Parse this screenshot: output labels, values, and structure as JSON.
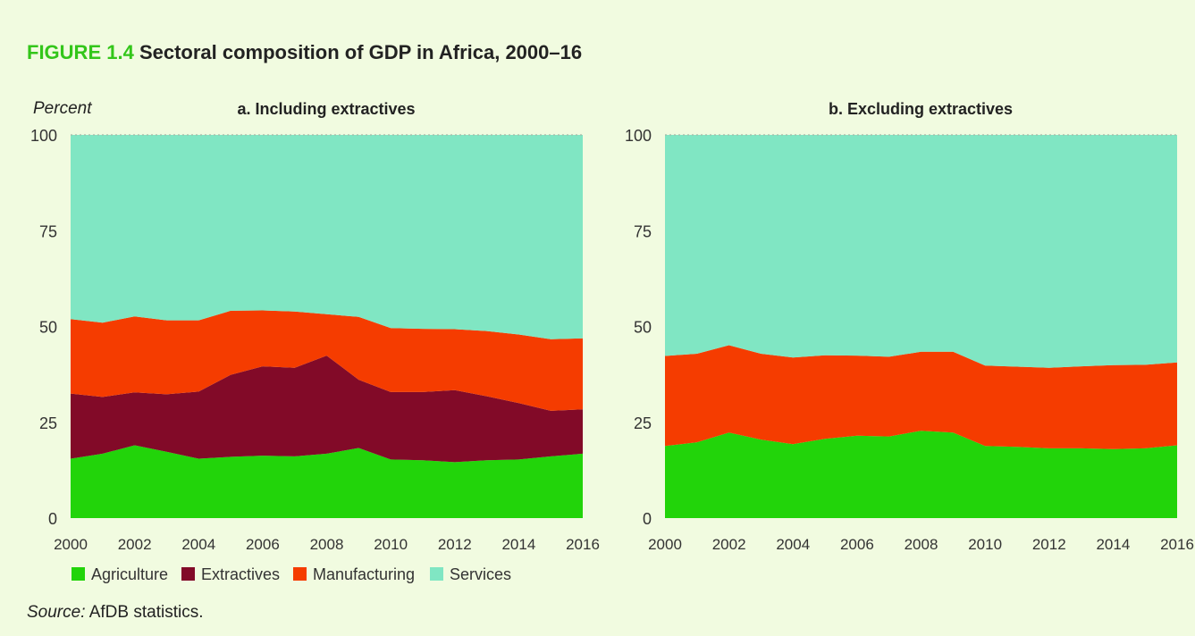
{
  "figure": {
    "label": "FIGURE 1.4",
    "title": "Sectoral composition of GDP in Africa, 2000–16"
  },
  "y_axis_label": "Percent",
  "legend": [
    {
      "name": "Agriculture",
      "color": "#22d40a"
    },
    {
      "name": "Extractives",
      "color": "#820a28"
    },
    {
      "name": "Manufacturing",
      "color": "#f53c00"
    },
    {
      "name": "Services",
      "color": "#80e6c3"
    }
  ],
  "source": {
    "label": "Source:",
    "text": "AfDB statistics."
  },
  "chart_data": [
    {
      "type": "area",
      "stacked": true,
      "title": "a. Including extractives",
      "ylabel": "Percent",
      "ylim": [
        0,
        100
      ],
      "yticks": [
        0,
        25,
        50,
        75,
        100
      ],
      "x": [
        2000,
        2001,
        2002,
        2003,
        2004,
        2005,
        2006,
        2007,
        2008,
        2009,
        2010,
        2011,
        2012,
        2013,
        2014,
        2015,
        2016
      ],
      "xticks": [
        "2000",
        "2002",
        "2004",
        "2006",
        "2008",
        "2010",
        "2012",
        "2014",
        "2016"
      ],
      "series": [
        {
          "name": "Agriculture",
          "values": [
            15.5,
            16.8,
            19.0,
            17.3,
            15.5,
            16.0,
            16.3,
            16.1,
            16.8,
            18.3,
            15.3,
            15.1,
            14.6,
            15.1,
            15.3,
            16.1,
            16.8
          ]
        },
        {
          "name": "Extractives",
          "values": [
            17.0,
            14.8,
            13.8,
            15.0,
            17.5,
            21.4,
            23.3,
            23.1,
            25.6,
            17.8,
            17.6,
            17.8,
            18.8,
            16.7,
            14.7,
            11.9,
            11.6
          ]
        },
        {
          "name": "Manufacturing",
          "values": [
            19.4,
            19.4,
            19.8,
            19.3,
            18.6,
            16.7,
            14.6,
            14.7,
            10.8,
            16.4,
            16.7,
            16.5,
            15.9,
            17.0,
            17.9,
            18.7,
            18.5
          ]
        },
        {
          "name": "Services",
          "values": [
            48.1,
            49.0,
            47.4,
            48.4,
            48.4,
            45.9,
            45.8,
            46.1,
            46.8,
            47.5,
            50.4,
            50.6,
            50.7,
            51.2,
            52.1,
            53.3,
            53.1
          ]
        }
      ]
    },
    {
      "type": "area",
      "stacked": true,
      "title": "b. Excluding extractives",
      "ylim": [
        0,
        100
      ],
      "yticks": [
        0,
        25,
        50,
        75,
        100
      ],
      "x": [
        2000,
        2001,
        2002,
        2003,
        2004,
        2005,
        2006,
        2007,
        2008,
        2009,
        2010,
        2011,
        2012,
        2013,
        2014,
        2015,
        2016
      ],
      "xticks": [
        "2000",
        "2002",
        "2004",
        "2006",
        "2008",
        "2010",
        "2012",
        "2014",
        "2016"
      ],
      "series": [
        {
          "name": "Agriculture",
          "values": [
            18.8,
            19.8,
            22.3,
            20.5,
            19.3,
            20.7,
            21.5,
            21.3,
            22.8,
            22.3,
            18.8,
            18.6,
            18.2,
            18.2,
            18.0,
            18.2,
            19.0
          ]
        },
        {
          "name": "Manufacturing",
          "values": [
            23.5,
            23.1,
            22.8,
            22.4,
            22.6,
            21.8,
            20.9,
            20.8,
            20.6,
            21.1,
            21.0,
            20.9,
            21.0,
            21.4,
            21.9,
            21.8,
            21.6
          ]
        },
        {
          "name": "Services",
          "values": [
            57.7,
            57.1,
            54.9,
            57.1,
            58.1,
            57.5,
            57.6,
            57.9,
            56.6,
            56.6,
            60.2,
            60.5,
            60.8,
            60.4,
            60.1,
            60.0,
            59.4
          ]
        }
      ]
    }
  ]
}
